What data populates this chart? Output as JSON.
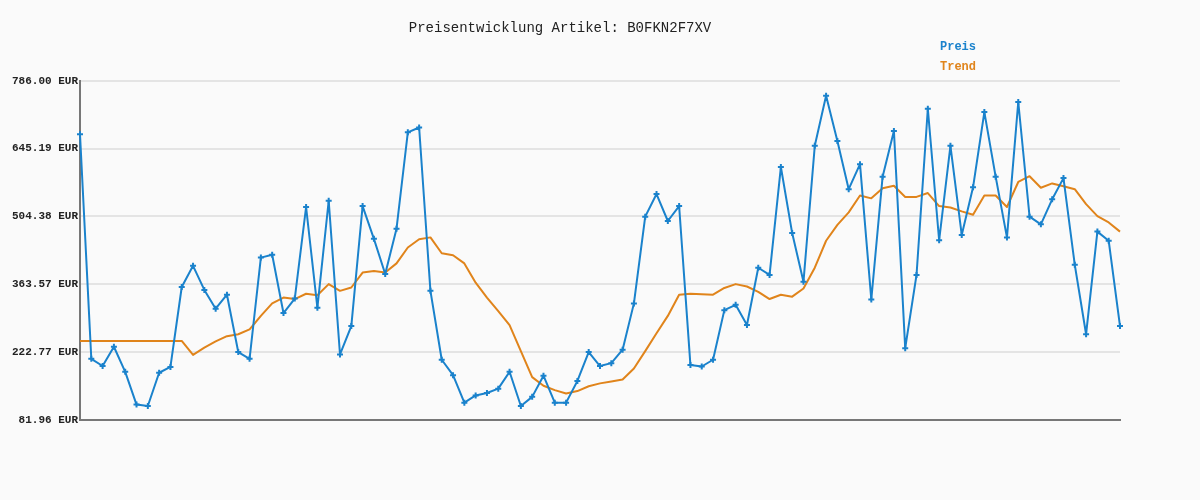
{
  "chart_data": {
    "type": "line",
    "title": "Preisentwicklung Artikel: B0FKN2F7XV",
    "categories": [
      null,
      null,
      null,
      null,
      null,
      null,
      null,
      null,
      null,
      null,
      null,
      null,
      null,
      null,
      null,
      null,
      null,
      null,
      null,
      null,
      null,
      null,
      null,
      null,
      null,
      null,
      null,
      null,
      null,
      null,
      null,
      null,
      null,
      null,
      null,
      null,
      null,
      null,
      null,
      null,
      null,
      null,
      null,
      null,
      null,
      null,
      null,
      null,
      null,
      null,
      null,
      null,
      null,
      null,
      null,
      null,
      null,
      null,
      null,
      null,
      null,
      null,
      null,
      null,
      null,
      null,
      null,
      null,
      null,
      null,
      null,
      null,
      null,
      null,
      null,
      null,
      null,
      null,
      null,
      null,
      null,
      null,
      null,
      null,
      null,
      null,
      null,
      null,
      null,
      null,
      null,
      null,
      null
    ],
    "series": [
      {
        "name": "Preis",
        "color": "#1a82cc",
        "marker": "cross",
        "values": [
          675,
          209,
          194,
          234,
          182,
          114,
          111,
          180,
          192,
          358,
          402,
          352,
          313,
          342,
          223,
          209,
          419,
          425,
          304,
          334,
          524,
          315,
          537,
          218,
          277,
          526,
          458,
          385,
          479,
          679,
          689,
          350,
          207,
          175,
          118,
          133,
          138,
          147,
          182,
          111,
          130,
          174,
          118,
          118,
          163,
          223,
          194,
          200,
          228,
          324,
          504,
          551,
          495,
          526,
          196,
          193,
          207,
          310,
          321,
          279,
          398,
          383,
          607,
          470,
          369,
          651,
          755,
          661,
          561,
          613,
          332,
          587,
          682,
          231,
          383,
          728,
          455,
          651,
          466,
          565,
          721,
          587,
          461,
          742,
          504,
          488,
          540,
          584,
          404,
          260,
          473,
          454,
          277
        ]
      },
      {
        "name": "Trend",
        "color": "#e0841b",
        "marker": "none",
        "values": [
          246,
          246,
          246,
          246,
          246,
          246,
          246,
          246,
          246,
          246,
          217,
          232,
          245,
          256,
          260,
          270,
          298,
          324,
          336,
          333,
          344,
          341,
          364,
          350,
          357,
          388,
          391,
          388,
          407,
          440,
          457,
          461,
          428,
          424,
          407,
          367,
          336,
          308,
          279,
          225,
          171,
          153,
          144,
          137,
          142,
          152,
          158,
          162,
          166,
          189,
          225,
          262,
          298,
          342,
          344,
          343,
          342,
          356,
          364,
          359,
          348,
          333,
          342,
          338,
          355,
          398,
          454,
          487,
          513,
          548,
          542,
          563,
          568,
          545,
          545,
          553,
          526,
          523,
          515,
          508,
          548,
          548,
          524,
          576,
          588,
          564,
          573,
          567,
          561,
          530,
          505,
          492,
          473
        ]
      }
    ],
    "ylim": [
      81.96,
      786
    ],
    "yticks": [
      {
        "value": 81.96,
        "label": "81.96 EUR"
      },
      {
        "value": 222.77,
        "label": "222.77 EUR"
      },
      {
        "value": 363.57,
        "label": "363.57 EUR"
      },
      {
        "value": 504.38,
        "label": "504.38 EUR"
      },
      {
        "value": 645.19,
        "label": "645.19 EUR"
      },
      {
        "value": 786,
        "label": "786.00 EUR"
      }
    ],
    "grid": "y",
    "legend": "top right",
    "tick_labels": "y",
    "line_style": "solid"
  }
}
